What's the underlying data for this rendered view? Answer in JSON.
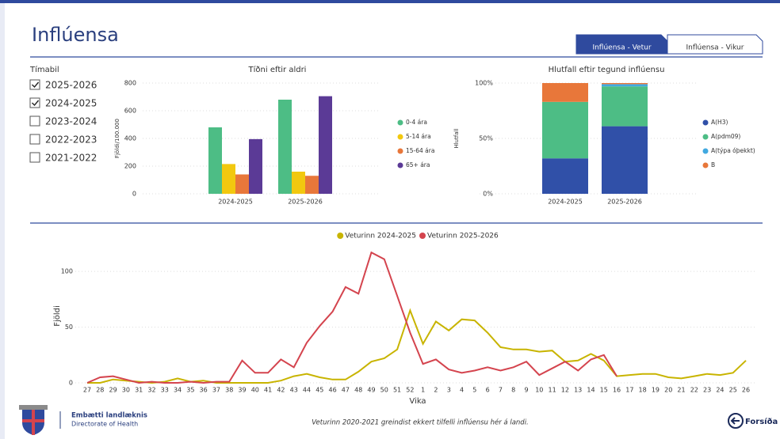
{
  "header": {
    "title": "Inflúensa"
  },
  "tabs": [
    {
      "label": "Inflúensa - Vetur",
      "active": true
    },
    {
      "label": "Inflúensa - Vikur",
      "active": false
    }
  ],
  "filter": {
    "title": "Tímabil",
    "options": [
      {
        "label": "2025-2026",
        "checked": true
      },
      {
        "label": "2024-2025",
        "checked": true
      },
      {
        "label": "2023-2024",
        "checked": false
      },
      {
        "label": "2022-2023",
        "checked": false
      },
      {
        "label": "2021-2022",
        "checked": false
      }
    ]
  },
  "chart_data": [
    {
      "type": "bar",
      "title": "Tíðni eftir aldri",
      "ylabel": "Fjöldi/100.000",
      "categories": [
        "2024-2025",
        "2025-2026"
      ],
      "series": [
        {
          "name": "0-4 ára",
          "color": "#4dbd85",
          "values": [
            480,
            680
          ]
        },
        {
          "name": "5-14 ára",
          "color": "#f2c80f",
          "values": [
            215,
            160
          ]
        },
        {
          "name": "15-64 ára",
          "color": "#e8773a",
          "values": [
            140,
            130
          ]
        },
        {
          "name": "65+ ára",
          "color": "#5b3a96",
          "values": [
            395,
            705
          ]
        }
      ],
      "ylim": [
        0,
        800
      ],
      "yticks": [
        0,
        200,
        400,
        600,
        800
      ],
      "grid": true,
      "legend": "right"
    },
    {
      "type": "stacked_bar",
      "title": "Hlutfall eftir tegund inflúensu",
      "ylabel": "Hlutfall",
      "categories": [
        "2024-2025",
        "2025-2026"
      ],
      "series": [
        {
          "name": "A(H3)",
          "color": "#3050a8",
          "values": [
            32,
            61
          ]
        },
        {
          "name": "A(pdm09)",
          "color": "#4dbd85",
          "values": [
            51,
            36
          ]
        },
        {
          "name": "A(týpa óþekkt)",
          "color": "#41a9e0",
          "values": [
            0,
            2
          ]
        },
        {
          "name": "B",
          "color": "#e8773a",
          "values": [
            17,
            1
          ]
        }
      ],
      "ylim": [
        0,
        100
      ],
      "yticks": [
        {
          "value": 0,
          "label": "0%"
        },
        {
          "value": 50,
          "label": "50%"
        },
        {
          "value": 100,
          "label": "100%"
        }
      ],
      "grid": true,
      "legend": "right"
    },
    {
      "type": "line",
      "xlabel": "Vika",
      "ylabel": "Fjöldi",
      "categories": [
        "27",
        "28",
        "29",
        "30",
        "31",
        "32",
        "33",
        "34",
        "35",
        "36",
        "37",
        "38",
        "39",
        "40",
        "41",
        "42",
        "43",
        "44",
        "45",
        "46",
        "47",
        "48",
        "49",
        "50",
        "51",
        "52",
        "1",
        "2",
        "3",
        "4",
        "5",
        "6",
        "7",
        "8",
        "9",
        "10",
        "11",
        "12",
        "13",
        "14",
        "15",
        "16",
        "17",
        "18",
        "19",
        "20",
        "21",
        "22",
        "23",
        "24",
        "25",
        "26"
      ],
      "series": [
        {
          "name": "Veturinn 2024-2025",
          "color": "#c8b400",
          "values": [
            0,
            0,
            3,
            2,
            1,
            0,
            1,
            4,
            1,
            2,
            0,
            0,
            0,
            0,
            0,
            2,
            6,
            8,
            5,
            3,
            3,
            10,
            19,
            22,
            30,
            65,
            35,
            55,
            47,
            57,
            56,
            45,
            32,
            30,
            30,
            28,
            29,
            19,
            20,
            26,
            20,
            6,
            7,
            8,
            8,
            5,
            4,
            6,
            8,
            7,
            9,
            20
          ]
        },
        {
          "name": "Veturinn 2025-2026",
          "color": "#d4444e",
          "values": [
            0,
            5,
            6,
            3,
            0,
            1,
            0,
            0,
            1,
            0,
            1,
            1,
            20,
            9,
            9,
            21,
            14,
            36,
            51,
            64,
            86,
            80,
            117,
            111,
            78,
            45,
            17,
            21,
            12,
            9,
            11,
            14,
            11,
            14,
            19,
            7,
            13,
            19,
            11,
            21,
            25,
            6,
            null,
            null,
            null,
            null,
            null,
            null,
            null,
            null,
            null,
            null
          ]
        }
      ],
      "ylim": [
        0,
        120
      ],
      "yticks": [
        0,
        50,
        100
      ],
      "grid": true,
      "legend": "top"
    }
  ],
  "footer": {
    "org_name": "Embætti landlæknis",
    "org_subtitle": "Directorate of Health",
    "note": "Veturinn 2020-2021 greindist ekkert tilfelli inflúensu hér á landi.",
    "home": "Forsíða"
  }
}
